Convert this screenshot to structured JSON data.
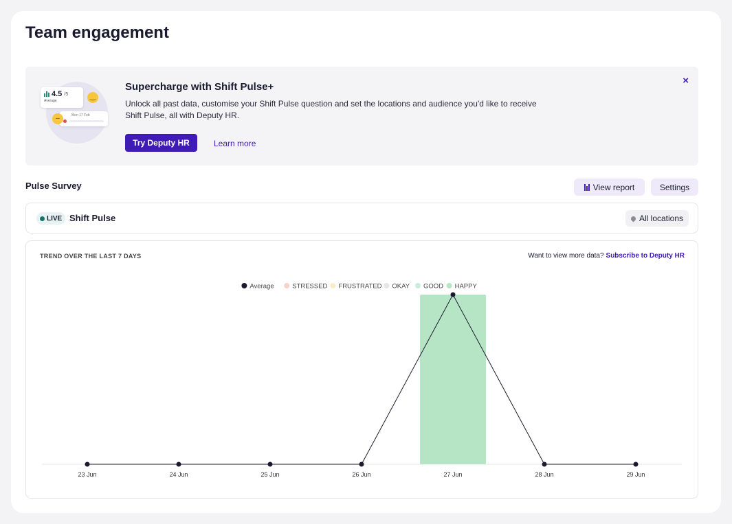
{
  "page": {
    "title": "Team engagement"
  },
  "promo": {
    "title": "Supercharge with Shift Pulse+",
    "description": "Unlock all past data, customise your Shift Pulse question and set the locations and audience you'd like to receive Shift Pulse, all with Deputy HR.",
    "primary_button": "Try Deputy HR",
    "link": "Learn more",
    "close_icon": "×",
    "art": {
      "score": "4.5",
      "score_suffix": "/5",
      "score_label": "Average",
      "date_label": "Mon 17 Feb"
    }
  },
  "pulse_survey": {
    "title": "Pulse Survey",
    "view_report": "View report",
    "settings": "Settings",
    "live_badge": "LIVE",
    "name": "Shift Pulse",
    "locations": "All locations"
  },
  "chart_header": {
    "trend_label": "TREND OVER THE LAST 7 DAYS",
    "more_data_text": "Want to view more data?",
    "subscribe_link": "Subscribe to Deputy HR"
  },
  "chart_data": {
    "type": "bar",
    "title": "",
    "xlabel": "",
    "ylabel": "",
    "categories": [
      "23 Jun",
      "24 Jun",
      "25 Jun",
      "26 Jun",
      "27 Jun",
      "28 Jun",
      "29 Jun"
    ],
    "ylim": [
      0,
      1
    ],
    "legend_position": "top-center",
    "grid": false,
    "series": [
      {
        "name": "STRESSED",
        "type": "bar",
        "color": "#f9d3c9",
        "values": [
          0,
          0,
          0,
          0,
          0,
          0,
          0
        ]
      },
      {
        "name": "FRUSTRATED",
        "type": "bar",
        "color": "#fbecc8",
        "values": [
          0,
          0,
          0,
          0,
          0,
          0,
          0
        ]
      },
      {
        "name": "OKAY",
        "type": "bar",
        "color": "#e4e4ea",
        "values": [
          0,
          0,
          0,
          0,
          0,
          0,
          0
        ]
      },
      {
        "name": "GOOD",
        "type": "bar",
        "color": "#cdebd9",
        "values": [
          0,
          0,
          0,
          0,
          0,
          0,
          0
        ]
      },
      {
        "name": "HAPPY",
        "type": "bar",
        "color": "#b6e5c6",
        "values": [
          0,
          0,
          0,
          0,
          1,
          0,
          0
        ]
      },
      {
        "name": "Average",
        "type": "line",
        "color": "#1b1b2f",
        "values": [
          0,
          0,
          0,
          0,
          1,
          0,
          0
        ]
      }
    ]
  }
}
